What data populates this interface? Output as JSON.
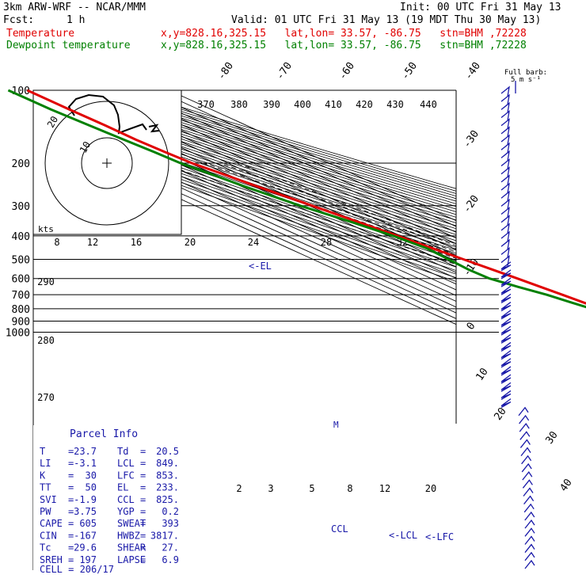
{
  "header": {
    "model": "3km ARW-WRF -- NCAR/MMM",
    "init": "Init: 00 UTC Fri 31 May 13",
    "fcst_label": "Fcst:",
    "fcst_value": "1 h",
    "valid": "Valid: 01 UTC Fri 31 May 13 (19 MDT Thu 30 May 13)",
    "temp_name": "Temperature",
    "temp_info": "x,y=828.16,325.15   lat,lon= 33.57, -86.75   stn=BHM ,72228",
    "dew_name": "Dewpoint temperature",
    "dew_info": "x,y=828.16,325.15   lat,lon= 33.57, -86.75   stn=BHM ,72228"
  },
  "colors": {
    "temperature": "#e00000",
    "dewpoint": "#008000",
    "wind_barbs": "#1818a8",
    "annotation": "#1818a8",
    "grid": "#000000"
  },
  "chart_data": {
    "type": "line",
    "subtype": "skew-T log-P sounding",
    "pressure_ticks": [
      100,
      200,
      300,
      400,
      500,
      600,
      700,
      800,
      900,
      1000
    ],
    "isotherm_labels": [
      "-80",
      "-70",
      "-60",
      "-50",
      "-40",
      "-30",
      "-20",
      "-10",
      "0",
      "10",
      "20",
      "30",
      "40"
    ],
    "dry_adiabat_labels": [
      "370",
      "380",
      "390",
      "400",
      "410",
      "420",
      "430",
      "440",
      "290",
      "280",
      "270"
    ],
    "mixing_ratio_labels": [
      "2",
      "3",
      "5",
      "8",
      "12",
      "20"
    ],
    "hodograph": {
      "units": "kts",
      "ring_labels": [
        "8",
        "12",
        "16",
        "20",
        "24",
        "28",
        "32"
      ],
      "circle_labels": [
        "20",
        "10"
      ]
    },
    "series": [
      {
        "name": "Temperature",
        "p": [
          995,
          985,
          970,
          950,
          925,
          900,
          870,
          850,
          800,
          750,
          700,
          650,
          600,
          550,
          500,
          450,
          400,
          350,
          300,
          250,
          220,
          200,
          180,
          160,
          140,
          120,
          100
        ],
        "t": [
          24.4,
          26.0,
          24.5,
          23.4,
          21.4,
          19.3,
          16.3,
          14.5,
          11.3,
          8.3,
          5.3,
          1.7,
          -2.0,
          -6.3,
          -11.3,
          -16.5,
          -22.5,
          -29.5,
          -37.5,
          -47.5,
          -53.5,
          -58.5,
          -60.5,
          -62.0,
          -61.5,
          -62.0,
          -62.0
        ]
      },
      {
        "name": "Dewpoint temperature",
        "p": [
          995,
          985,
          970,
          950,
          925,
          900,
          870,
          850,
          800,
          750,
          700,
          650,
          600,
          550,
          500,
          450,
          400,
          350,
          300,
          250,
          220,
          200,
          180,
          160,
          140,
          120,
          100
        ],
        "t": [
          20.5,
          20.0,
          15.0,
          15.5,
          16.0,
          14.5,
          12.0,
          10.0,
          4.0,
          -1.5,
          -7.0,
          -16.0,
          -24.0,
          -25.0,
          -23.0,
          -21.0,
          -26.0,
          -35.0,
          -47.0,
          -57.5,
          -63.0,
          -67.5,
          -69.0,
          -71.5,
          -74.0,
          -76.5,
          -77.0
        ]
      }
    ],
    "annotations": [
      "<-EL",
      "<-LCL",
      "<-LFC",
      "CCL",
      "M",
      "Full barb:",
      "5 m s⁻¹"
    ],
    "wind_barbs_count": 60
  },
  "parcel_info": {
    "title": "Parcel Info",
    "rows": [
      [
        "T",
        "=",
        "23.7",
        "Td",
        "=",
        "20.5"
      ],
      [
        "LI",
        "=",
        "-3.1",
        "LCL",
        "=",
        "849."
      ],
      [
        "K",
        "=",
        "30",
        "LFC",
        "=",
        "853."
      ],
      [
        "TT",
        "=",
        "50",
        "EL",
        "=",
        "233."
      ],
      [
        "SVI",
        "=",
        "-1.9",
        "CCL",
        "=",
        "825."
      ],
      [
        "PW",
        "=",
        "3.75",
        "YGP",
        "=",
        "0.2"
      ],
      [
        "CAPE",
        "=",
        "605",
        "SWEAT",
        "=",
        "393"
      ],
      [
        "CIN",
        "=",
        "-167",
        "HWBZ",
        "=",
        "3817."
      ],
      [
        "Tc",
        "=",
        "29.6",
        "SHEAR",
        "=",
        "27."
      ],
      [
        "SREH",
        "=",
        "197",
        "LAPSE",
        "=",
        "6.9"
      ]
    ],
    "cell": "CELL = 206/17"
  }
}
